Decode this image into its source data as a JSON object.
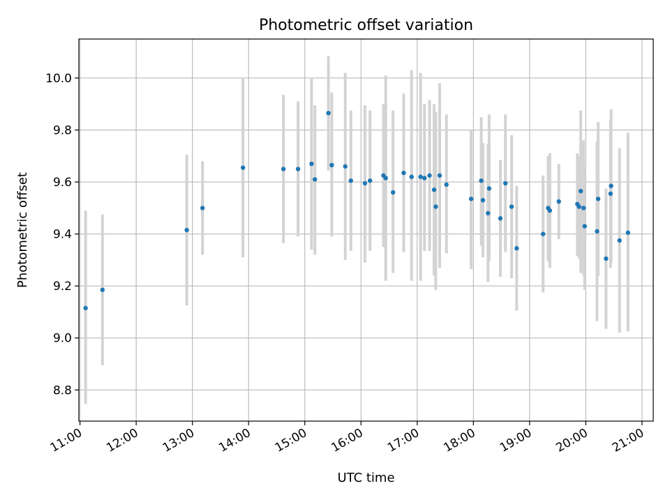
{
  "chart_data": {
    "type": "scatter",
    "title": "Photometric offset variation",
    "xlabel": "UTC time",
    "ylabel": "Photometric offset",
    "xlim": [
      10.98,
      21.2
    ],
    "ylim": [
      8.68,
      10.15
    ],
    "grid": true,
    "x_unit": "hours UTC",
    "xticks": [
      11,
      12,
      13,
      14,
      15,
      16,
      17,
      18,
      19,
      20,
      21
    ],
    "xtick_labels": [
      "11:00",
      "12:00",
      "13:00",
      "14:00",
      "15:00",
      "16:00",
      "17:00",
      "18:00",
      "19:00",
      "20:00",
      "21:00"
    ],
    "yticks": [
      8.8,
      9.0,
      9.2,
      9.4,
      9.6,
      9.8,
      10.0
    ],
    "ytick_labels": [
      "8.8",
      "9.0",
      "9.2",
      "9.4",
      "9.6",
      "9.8",
      "10.0"
    ],
    "colors": {
      "point": "#1f77b4",
      "errorbar": "#d3d3d3",
      "grid": "#b0b0b0",
      "frame": "#000000"
    },
    "points": [
      {
        "x": 11.1,
        "y": 9.115,
        "ylo": 8.745,
        "yhi": 9.49
      },
      {
        "x": 11.4,
        "y": 9.185,
        "ylo": 8.895,
        "yhi": 9.475
      },
      {
        "x": 12.9,
        "y": 9.415,
        "ylo": 9.125,
        "yhi": 9.705
      },
      {
        "x": 13.18,
        "y": 9.5,
        "ylo": 9.32,
        "yhi": 9.68
      },
      {
        "x": 13.9,
        "y": 9.655,
        "ylo": 9.31,
        "yhi": 10.0
      },
      {
        "x": 14.62,
        "y": 9.65,
        "ylo": 9.365,
        "yhi": 9.935
      },
      {
        "x": 14.88,
        "y": 9.65,
        "ylo": 9.39,
        "yhi": 9.91
      },
      {
        "x": 15.12,
        "y": 9.67,
        "ylo": 9.34,
        "yhi": 10.0
      },
      {
        "x": 15.18,
        "y": 9.61,
        "ylo": 9.32,
        "yhi": 9.895
      },
      {
        "x": 15.42,
        "y": 9.865,
        "ylo": 9.645,
        "yhi": 10.085
      },
      {
        "x": 15.48,
        "y": 9.665,
        "ylo": 9.39,
        "yhi": 9.945
      },
      {
        "x": 15.72,
        "y": 9.66,
        "ylo": 9.3,
        "yhi": 10.02
      },
      {
        "x": 15.82,
        "y": 9.605,
        "ylo": 9.335,
        "yhi": 9.875
      },
      {
        "x": 16.07,
        "y": 9.595,
        "ylo": 9.29,
        "yhi": 9.895
      },
      {
        "x": 16.16,
        "y": 9.605,
        "ylo": 9.335,
        "yhi": 9.875
      },
      {
        "x": 16.4,
        "y": 9.625,
        "ylo": 9.35,
        "yhi": 9.9
      },
      {
        "x": 16.44,
        "y": 9.615,
        "ylo": 9.22,
        "yhi": 10.01
      },
      {
        "x": 16.57,
        "y": 9.56,
        "ylo": 9.25,
        "yhi": 9.875
      },
      {
        "x": 16.76,
        "y": 9.635,
        "ylo": 9.33,
        "yhi": 9.94
      },
      {
        "x": 16.9,
        "y": 9.62,
        "ylo": 9.22,
        "yhi": 10.03
      },
      {
        "x": 17.06,
        "y": 9.62,
        "ylo": 9.22,
        "yhi": 10.02
      },
      {
        "x": 17.13,
        "y": 9.615,
        "ylo": 9.335,
        "yhi": 9.9
      },
      {
        "x": 17.22,
        "y": 9.625,
        "ylo": 9.335,
        "yhi": 9.915
      },
      {
        "x": 17.3,
        "y": 9.57,
        "ylo": 9.24,
        "yhi": 9.9
      },
      {
        "x": 17.33,
        "y": 9.505,
        "ylo": 9.185,
        "yhi": 9.87
      },
      {
        "x": 17.4,
        "y": 9.625,
        "ylo": 9.27,
        "yhi": 9.98
      },
      {
        "x": 17.52,
        "y": 9.59,
        "ylo": 9.325,
        "yhi": 9.86
      },
      {
        "x": 17.96,
        "y": 9.535,
        "ylo": 9.265,
        "yhi": 9.8
      },
      {
        "x": 18.14,
        "y": 9.605,
        "ylo": 9.355,
        "yhi": 9.85
      },
      {
        "x": 18.17,
        "y": 9.53,
        "ylo": 9.31,
        "yhi": 9.75
      },
      {
        "x": 18.26,
        "y": 9.48,
        "ylo": 9.215,
        "yhi": 9.745
      },
      {
        "x": 18.28,
        "y": 9.575,
        "ylo": 9.295,
        "yhi": 9.86
      },
      {
        "x": 18.48,
        "y": 9.46,
        "ylo": 9.235,
        "yhi": 9.685
      },
      {
        "x": 18.57,
        "y": 9.595,
        "ylo": 9.33,
        "yhi": 9.86
      },
      {
        "x": 18.68,
        "y": 9.505,
        "ylo": 9.23,
        "yhi": 9.78
      },
      {
        "x": 18.77,
        "y": 9.345,
        "ylo": 9.105,
        "yhi": 9.585
      },
      {
        "x": 19.24,
        "y": 9.4,
        "ylo": 9.175,
        "yhi": 9.625
      },
      {
        "x": 19.33,
        "y": 9.5,
        "ylo": 9.295,
        "yhi": 9.7
      },
      {
        "x": 19.36,
        "y": 9.49,
        "ylo": 9.27,
        "yhi": 9.71
      },
      {
        "x": 19.52,
        "y": 9.525,
        "ylo": 9.38,
        "yhi": 9.67
      },
      {
        "x": 19.85,
        "y": 9.515,
        "ylo": 9.315,
        "yhi": 9.71
      },
      {
        "x": 19.88,
        "y": 9.505,
        "ylo": 9.305,
        "yhi": 9.7
      },
      {
        "x": 19.91,
        "y": 9.565,
        "ylo": 9.25,
        "yhi": 9.875
      },
      {
        "x": 19.96,
        "y": 9.5,
        "ylo": 9.24,
        "yhi": 9.76
      },
      {
        "x": 19.98,
        "y": 9.43,
        "ylo": 9.185,
        "yhi": 9.66
      },
      {
        "x": 20.2,
        "y": 9.41,
        "ylo": 9.065,
        "yhi": 9.755
      },
      {
        "x": 20.22,
        "y": 9.535,
        "ylo": 9.24,
        "yhi": 9.83
      },
      {
        "x": 20.36,
        "y": 9.305,
        "ylo": 9.035,
        "yhi": 9.575
      },
      {
        "x": 20.44,
        "y": 9.555,
        "ylo": 9.27,
        "yhi": 9.84
      },
      {
        "x": 20.45,
        "y": 9.585,
        "ylo": 9.29,
        "yhi": 9.88
      },
      {
        "x": 20.6,
        "y": 9.375,
        "ylo": 9.02,
        "yhi": 9.73
      },
      {
        "x": 20.75,
        "y": 9.405,
        "ylo": 9.025,
        "yhi": 9.79
      }
    ]
  }
}
